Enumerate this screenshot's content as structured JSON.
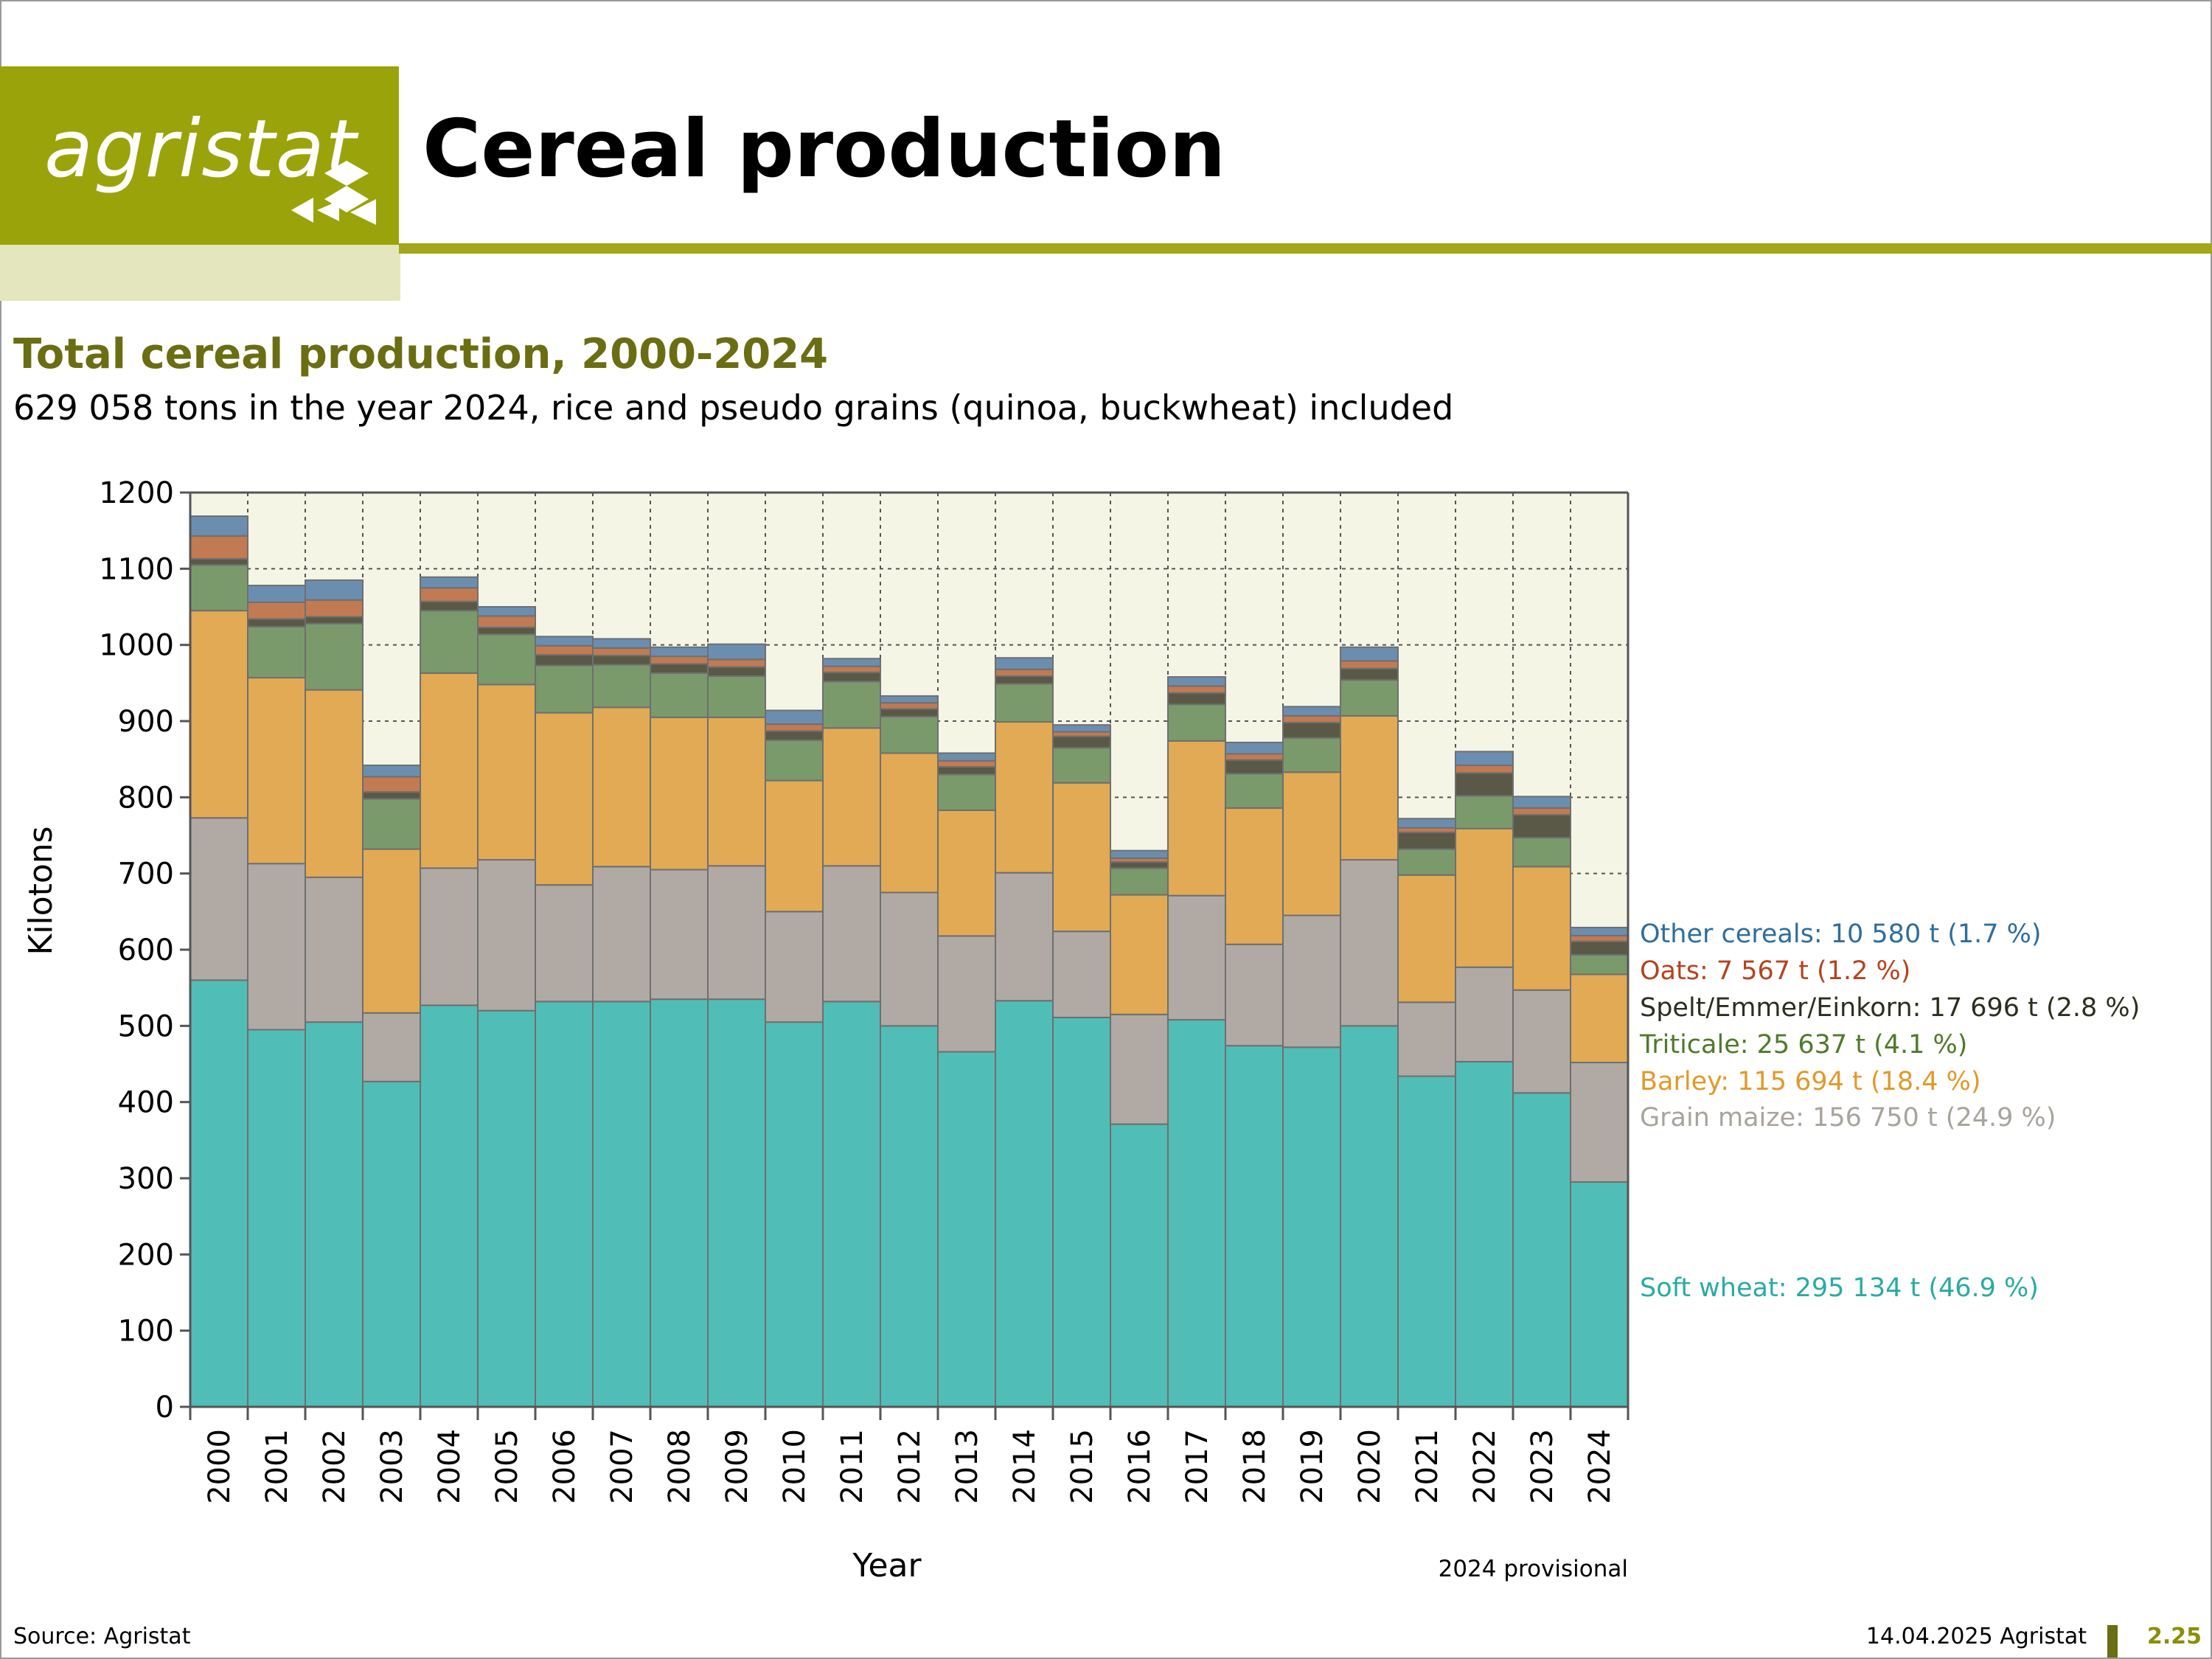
{
  "header": {
    "logo_text": "agristat",
    "title": "Cereal production"
  },
  "subtitle": "Total cereal production, 2000-2024",
  "description": "629 058 tons in the year 2024, rice and pseudo grains (quinoa, buckwheat) included",
  "footer": {
    "source": "Source: Agristat",
    "date": "14.04.2025 Agristat",
    "page": "2.25"
  },
  "colors": {
    "soft_wheat": "#51bdb7",
    "grain_maize": "#b1aaa4",
    "barley": "#e2aa54",
    "triticale": "#7a9a6c",
    "spelt": "#5a5947",
    "oats": "#c27a52",
    "other": "#6b8eb0",
    "plot_bg": "#f5f5e6"
  },
  "chart_data": {
    "type": "bar",
    "stacked": true,
    "x_label": "Year",
    "y_label": "Kilotons",
    "ylim": [
      0,
      1200
    ],
    "yticks": [
      0,
      100,
      200,
      300,
      400,
      500,
      600,
      700,
      800,
      900,
      1000,
      1100,
      1200
    ],
    "grid": true,
    "note": "2024 provisional",
    "categories": [
      "2000",
      "2001",
      "2002",
      "2003",
      "2004",
      "2005",
      "2006",
      "2007",
      "2008",
      "2009",
      "2010",
      "2011",
      "2012",
      "2013",
      "2014",
      "2015",
      "2016",
      "2017",
      "2018",
      "2019",
      "2020",
      "2021",
      "2022",
      "2023",
      "2024"
    ],
    "series": [
      {
        "key": "soft_wheat",
        "values": [
          560,
          495,
          505,
          427,
          527,
          520,
          532,
          532,
          535,
          535,
          505,
          532,
          500,
          466,
          533,
          511,
          371,
          508,
          474,
          472,
          500,
          434,
          453,
          412,
          295.1
        ]
      },
      {
        "key": "grain_maize",
        "values": [
          213,
          218,
          190,
          90,
          180,
          198,
          153,
          177,
          170,
          175,
          145,
          178,
          175,
          152,
          168,
          113,
          144,
          163,
          133,
          173,
          218,
          97,
          124,
          135,
          156.8
        ]
      },
      {
        "key": "barley",
        "values": [
          272,
          244,
          246,
          215,
          256,
          230,
          226,
          209,
          200,
          195,
          172,
          181,
          183,
          165,
          198,
          195,
          157,
          203,
          179,
          188,
          189,
          167,
          182,
          162,
          115.7
        ]
      },
      {
        "key": "triticale",
        "values": [
          60,
          67,
          87,
          66,
          82,
          66,
          62,
          56,
          58,
          54,
          53,
          61,
          48,
          47,
          50,
          46,
          35,
          48,
          45,
          45,
          47,
          34,
          43,
          38,
          25.6
        ]
      },
      {
        "key": "spelt",
        "values": [
          8,
          10,
          9,
          9,
          12,
          9,
          14,
          12,
          12,
          12,
          12,
          12,
          10,
          10,
          10,
          15,
          8,
          15,
          18,
          20,
          15,
          22,
          30,
          30,
          17.7
        ]
      },
      {
        "key": "oats",
        "values": [
          30,
          22,
          22,
          20,
          18,
          15,
          12,
          10,
          10,
          10,
          9,
          8,
          8,
          8,
          9,
          6,
          5,
          9,
          8,
          9,
          10,
          6,
          10,
          9,
          7.6
        ]
      },
      {
        "key": "other",
        "values": [
          26,
          22,
          26,
          15,
          14,
          12,
          12,
          12,
          12,
          20,
          18,
          10,
          9,
          10,
          15,
          9,
          10,
          12,
          15,
          12,
          18,
          12,
          18,
          15,
          10.6
        ]
      }
    ],
    "legend": [
      {
        "key": "other",
        "label": "Other cereals: 10 580 t (1.7 %)",
        "color": "#2e6e9e"
      },
      {
        "key": "oats",
        "label": "Oats: 7 567 t (1.2 %)",
        "color": "#b5431e"
      },
      {
        "key": "spelt",
        "label": "Spelt/Emmer/Einkorn: 17 696 t (2.8 %)",
        "color": "#2e2e20"
      },
      {
        "key": "triticale",
        "label": "Triticale: 25 637 t (4.1 %)",
        "color": "#4f7a2a"
      },
      {
        "key": "barley",
        "label": "Barley: 115 694 t (18.4 %)",
        "color": "#e09a2a"
      },
      {
        "key": "grain_maize",
        "label": "Grain maize: 156 750 t (24.9 %)",
        "color": "#a8a39d"
      },
      {
        "key": "soft_wheat",
        "label": "Soft wheat: 295 134 t (46.9 %)",
        "color": "#2aaba3"
      }
    ]
  }
}
